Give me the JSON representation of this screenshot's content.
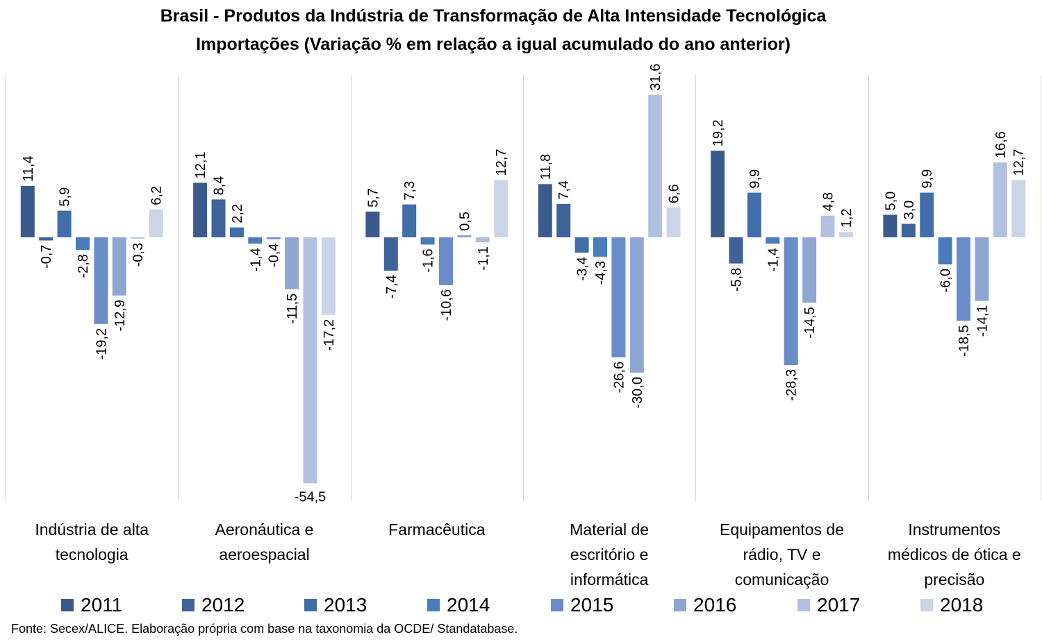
{
  "chart_data": {
    "type": "bar",
    "title": "Brasil - Produtos da Indústria de Transformação de Alta Intensidade Tecnológica",
    "subtitle": "Importações (Variação % em relação a igual acumulado do ano anterior)",
    "categories": [
      "Indústria de alta tecnologia",
      "Aeronáutica e aeroespacial",
      "Farmacêutica",
      "Material de escritório e informática",
      "Equipamentos de rádio, TV e comunicação",
      "Instrumentos médicos de ótica e precisão"
    ],
    "series": [
      {
        "name": "2011",
        "color": "#3a5a8c",
        "values": [
          11.4,
          12.1,
          5.7,
          11.8,
          19.2,
          5.0
        ],
        "labels": [
          "11,4",
          "12,1",
          "5,7",
          "11,8",
          "19,2",
          "5,0"
        ]
      },
      {
        "name": "2012",
        "color": "#3d6399",
        "values": [
          -0.7,
          8.4,
          -7.4,
          7.4,
          -5.8,
          3.0
        ],
        "labels": [
          "-0,7",
          "8,4",
          "-7,4",
          "7,4",
          "-5,8",
          "3,0"
        ]
      },
      {
        "name": "2013",
        "color": "#416ea8",
        "values": [
          5.9,
          2.2,
          7.3,
          -3.4,
          9.9,
          9.9
        ],
        "labels": [
          "5,9",
          "2,2",
          "7,3",
          "-3,4",
          "9,9",
          "9,9"
        ]
      },
      {
        "name": "2014",
        "color": "#4a7bbb",
        "values": [
          -2.8,
          -1.4,
          -1.6,
          -4.3,
          -1.4,
          -6.0
        ],
        "labels": [
          "-2,8",
          "-1,4",
          "-1,6",
          "-4,3",
          "-1,4",
          "-6,0"
        ]
      },
      {
        "name": "2015",
        "color": "#6a8cc8",
        "values": [
          -19.2,
          -0.4,
          -10.6,
          -26.6,
          -28.3,
          -18.5
        ],
        "labels": [
          "-19,2",
          "-0,4",
          "-10,6",
          "-26,6",
          "-28,3",
          "-18,5"
        ]
      },
      {
        "name": "2016",
        "color": "#8fa6d3",
        "values": [
          -12.9,
          -11.5,
          0.5,
          -30.0,
          -14.5,
          -14.1
        ],
        "labels": [
          "-12,9",
          "-11,5",
          "0,5",
          "-30,0",
          "-14,5",
          "-14,1"
        ]
      },
      {
        "name": "2017",
        "color": "#b2c1e0",
        "values": [
          -0.3,
          -54.5,
          -1.1,
          31.6,
          4.8,
          16.6
        ],
        "labels": [
          "-0,3",
          "-54,5",
          "-1,1",
          "31,6",
          "4,8",
          "16,6"
        ]
      },
      {
        "name": "2018",
        "color": "#ccd4e7",
        "values": [
          6.2,
          -17.2,
          12.7,
          6.6,
          1.2,
          12.7
        ],
        "labels": [
          "6,2",
          "-17,2",
          "12,7",
          "6,6",
          "1,2",
          "12,7"
        ]
      }
    ],
    "ylim": [
      -58,
      36
    ],
    "grid": false,
    "legend": "bottom"
  },
  "category_label_lines": [
    [
      "Indústria de alta",
      "tecnologia"
    ],
    [
      "Aeronáutica e",
      "aeroespacial"
    ],
    [
      "Farmacêutica"
    ],
    [
      "Material de",
      "escritório e",
      "informática"
    ],
    [
      "Equipamentos de",
      "rádio, TV e",
      "comunicação"
    ],
    [
      "Instrumentos",
      "médicos de ótica e",
      "precisão"
    ]
  ],
  "source": "Fonte: Secex/ALICE. Elaboração própria com base na taxonomia da OCDE/ Standatabase."
}
